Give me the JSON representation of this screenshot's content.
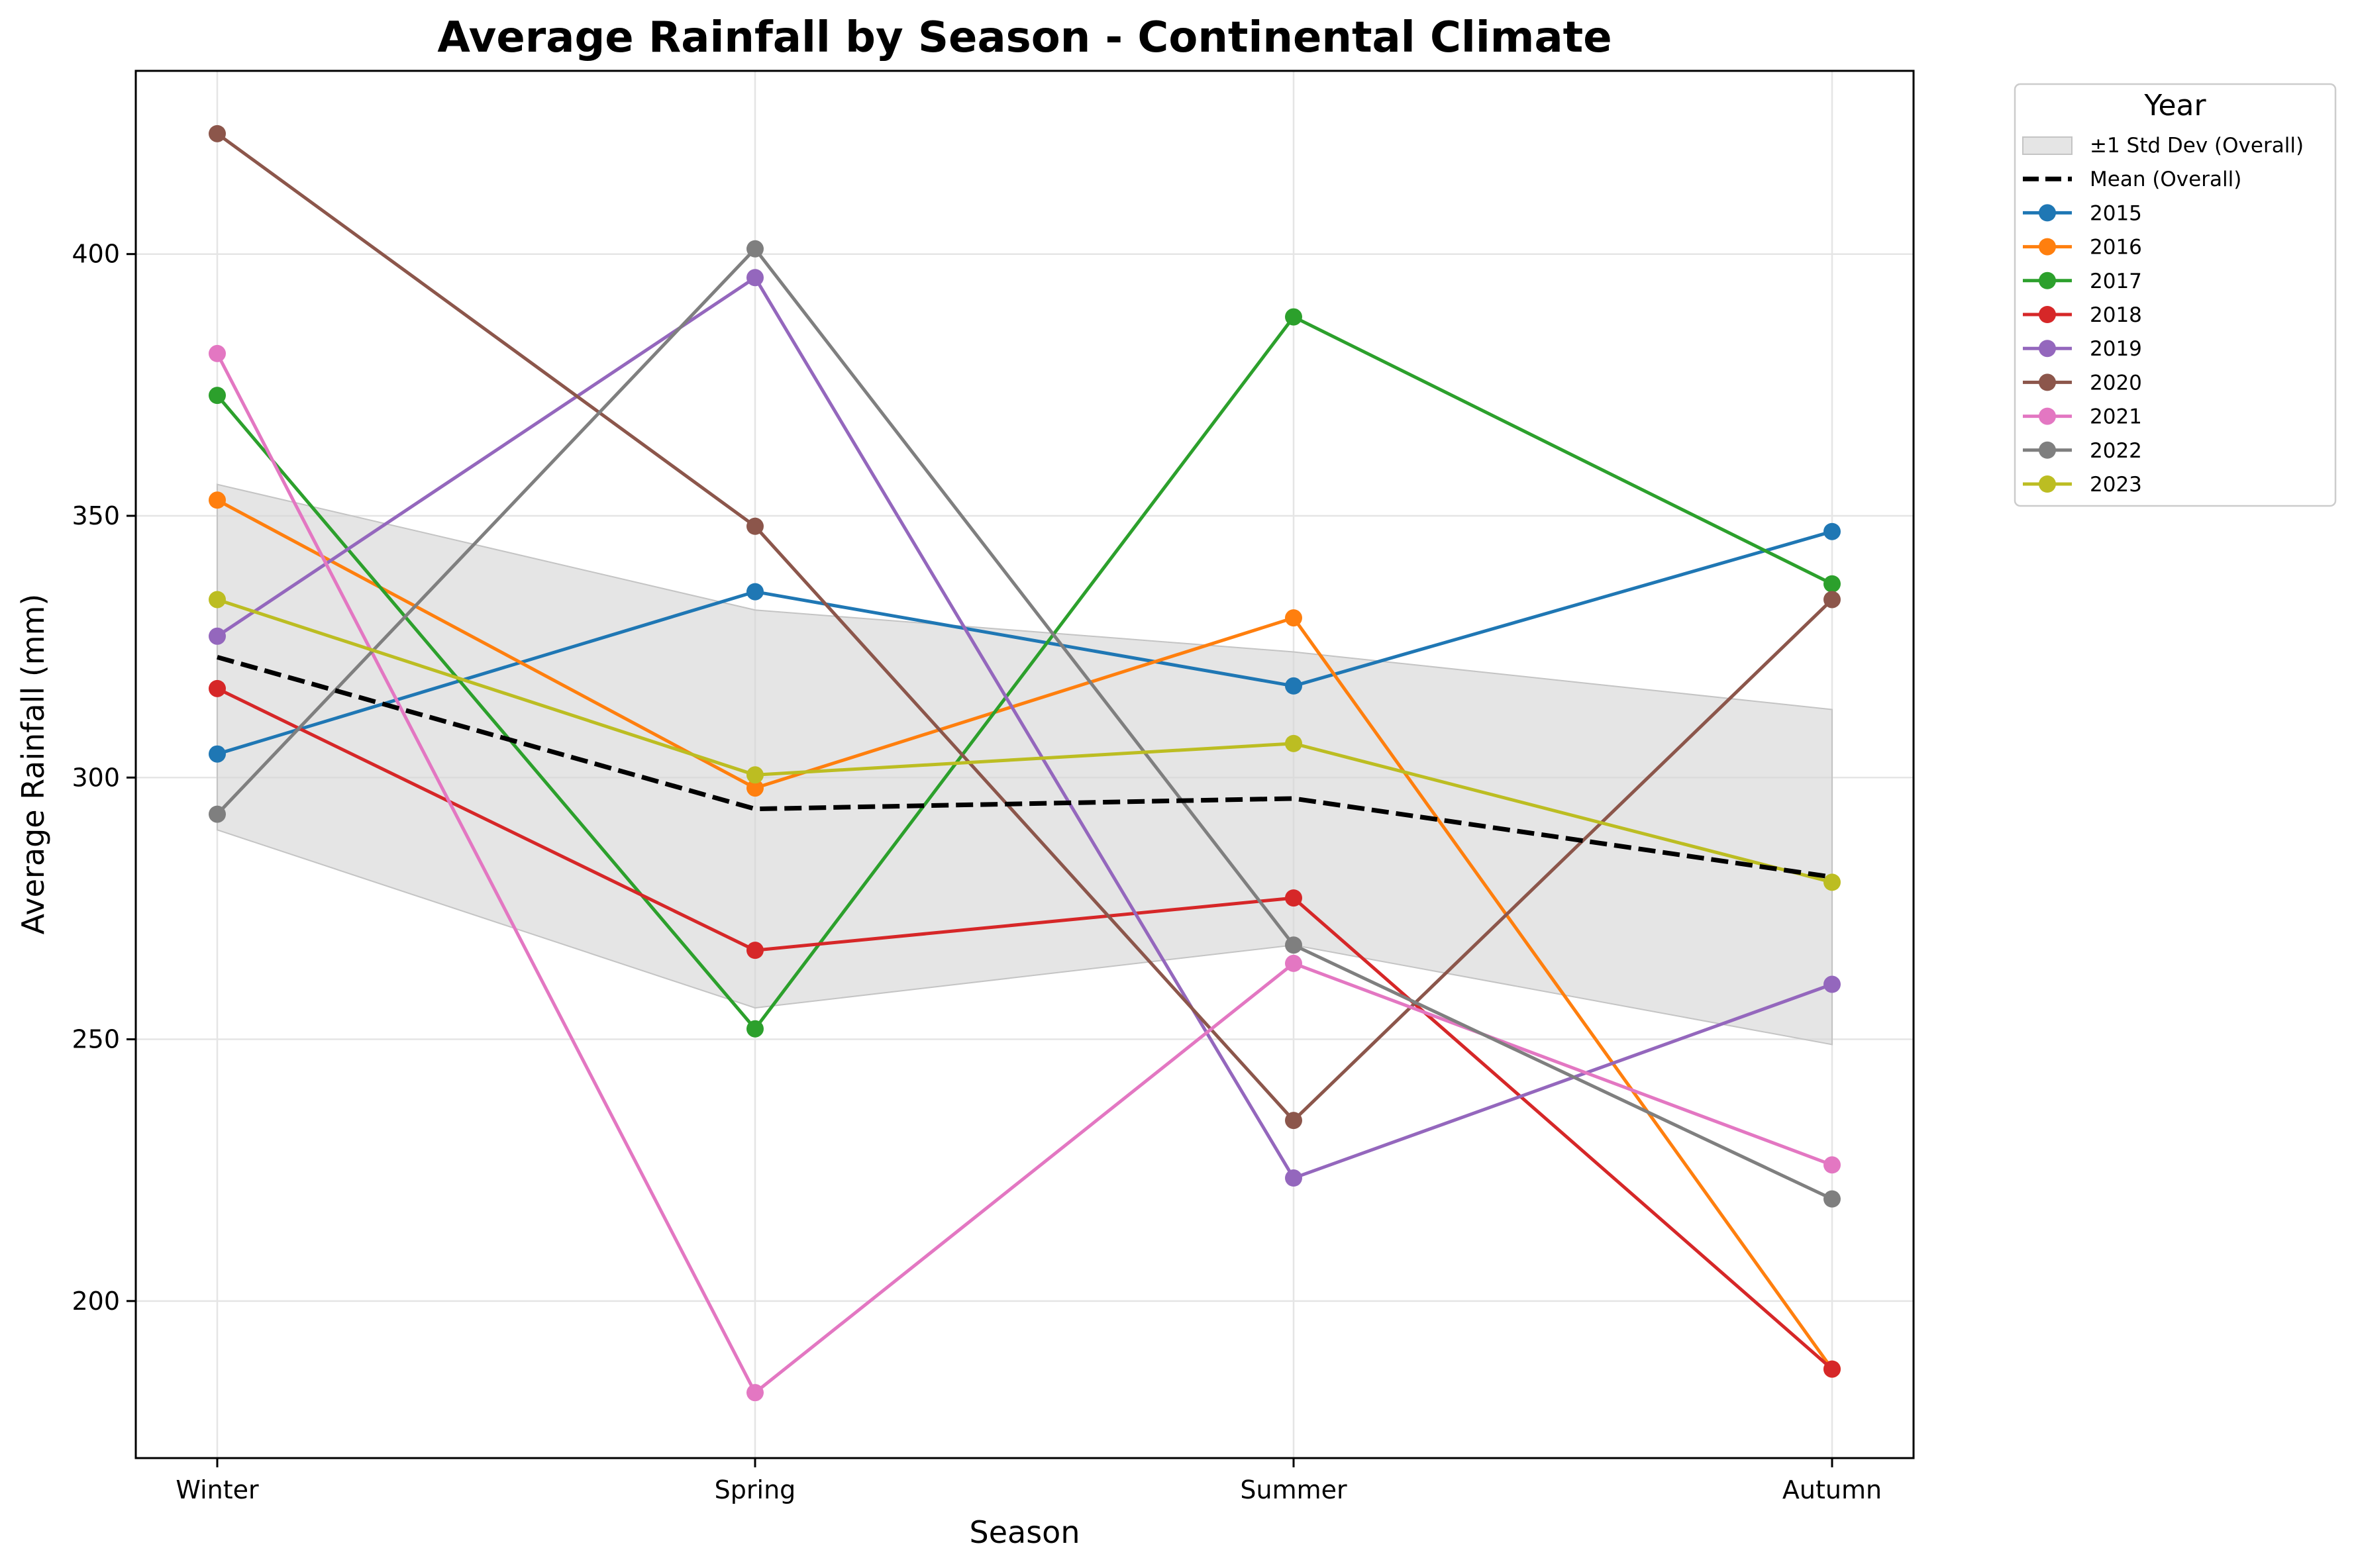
{
  "chart_data": {
    "type": "line",
    "title": "Average Rainfall by Season - Continental Climate",
    "xlabel": "Season",
    "ylabel": "Average Rainfall (mm)",
    "categories": [
      "Winter",
      "Spring",
      "Summer",
      "Autumn"
    ],
    "ylim": [
      170,
      435
    ],
    "yticks": [
      200,
      250,
      300,
      350,
      400
    ],
    "grid": true,
    "legend_title": "Year",
    "legend_position": "outside-top-right",
    "band": {
      "name": "±1 Std Dev (Overall)",
      "lower": [
        290,
        256,
        268,
        249
      ],
      "upper": [
        356,
        332,
        324,
        313
      ],
      "color": "#d3d3d3"
    },
    "mean": {
      "name": "Mean (Overall)",
      "values": [
        323,
        294,
        296,
        281
      ],
      "color": "#000000"
    },
    "series": [
      {
        "name": "2015",
        "values": [
          304.5,
          335.5,
          317.5,
          347
        ],
        "color": "#1f77b4"
      },
      {
        "name": "2016",
        "values": [
          353,
          298,
          330.5,
          187
        ],
        "color": "#ff7f0e"
      },
      {
        "name": "2017",
        "values": [
          373,
          252,
          388,
          337
        ],
        "color": "#2ca02c"
      },
      {
        "name": "2018",
        "values": [
          317,
          267,
          277,
          187
        ],
        "color": "#d62728"
      },
      {
        "name": "2019",
        "values": [
          327,
          395.5,
          223.5,
          260.5
        ],
        "color": "#9467bd"
      },
      {
        "name": "2020",
        "values": [
          423,
          348,
          234.5,
          334
        ],
        "color": "#8c564b"
      },
      {
        "name": "2021",
        "values": [
          381,
          182.5,
          264.5,
          226
        ],
        "color": "#e377c2"
      },
      {
        "name": "2022",
        "values": [
          293,
          401,
          268,
          219.5
        ],
        "color": "#7f7f7f"
      },
      {
        "name": "2023",
        "values": [
          334,
          300.5,
          306.5,
          280
        ],
        "color": "#bcbd22"
      }
    ]
  }
}
